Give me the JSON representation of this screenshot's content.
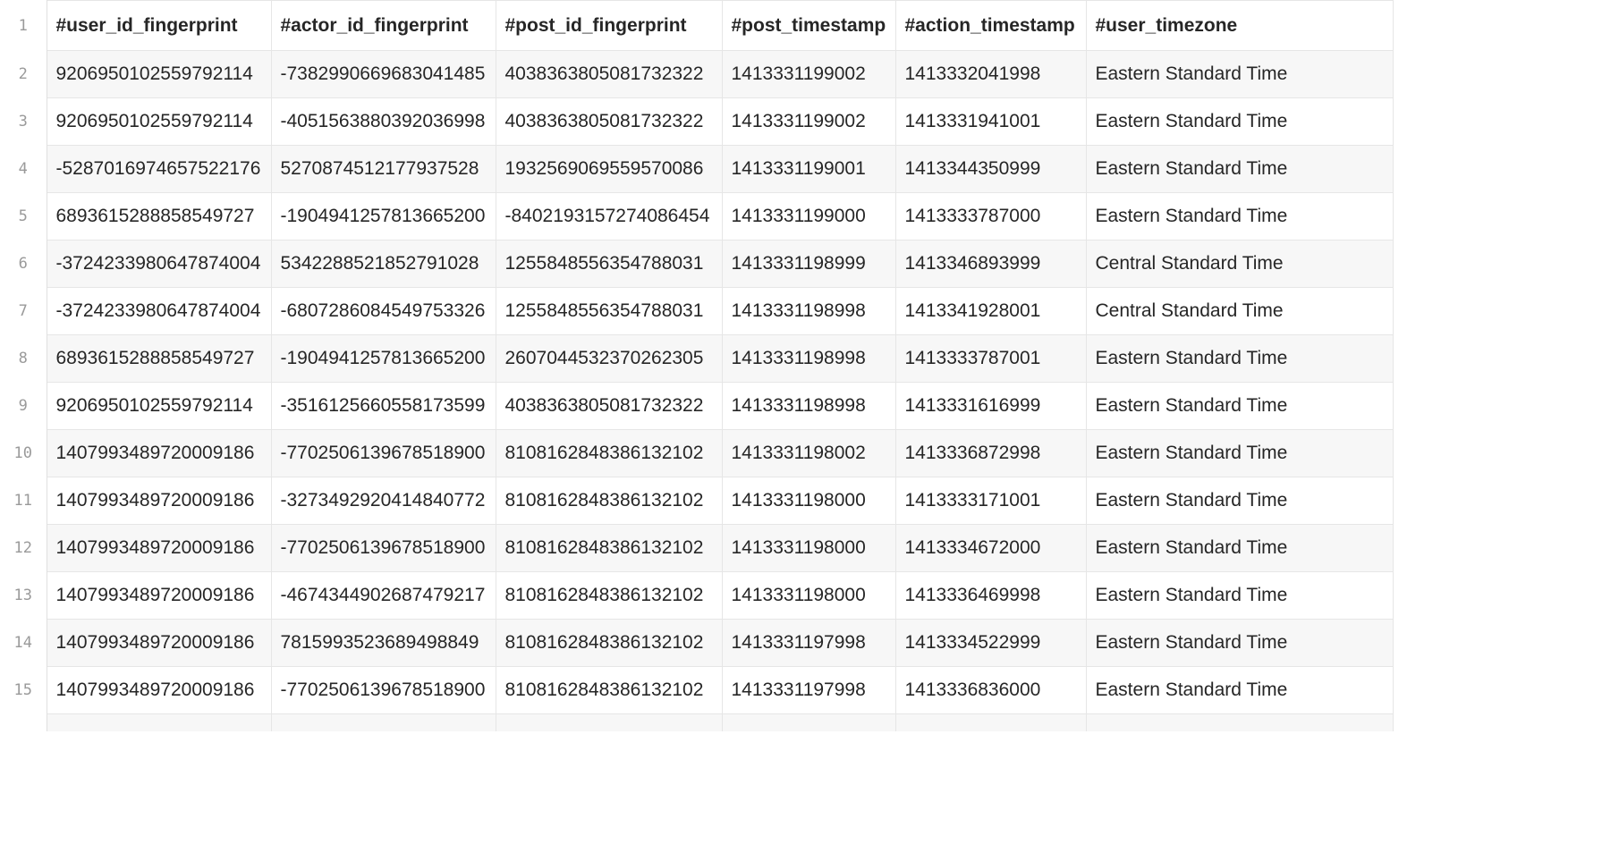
{
  "table": {
    "header_line": "1",
    "columns": [
      "#user_id_fingerprint",
      "#actor_id_fingerprint",
      "#post_id_fingerprint",
      "#post_timestamp",
      "#action_timestamp",
      "#user_timezone"
    ],
    "rows": [
      {
        "line": "2",
        "cells": [
          "9206950102559792114",
          "-7382990669683041485",
          "4038363805081732322",
          "1413331199002",
          "1413332041998",
          "Eastern Standard Time"
        ]
      },
      {
        "line": "3",
        "cells": [
          "9206950102559792114",
          "-4051563880392036998",
          "4038363805081732322",
          "1413331199002",
          "1413331941001",
          "Eastern Standard Time"
        ]
      },
      {
        "line": "4",
        "cells": [
          "-5287016974657522176",
          "5270874512177937528",
          "1932569069559570086",
          "1413331199001",
          "1413344350999",
          "Eastern Standard Time"
        ]
      },
      {
        "line": "5",
        "cells": [
          "6893615288858549727",
          "-1904941257813665200",
          "-8402193157274086454",
          "1413331199000",
          "1413333787000",
          "Eastern Standard Time"
        ]
      },
      {
        "line": "6",
        "cells": [
          "-3724233980647874004",
          "5342288521852791028",
          "1255848556354788031",
          "1413331198999",
          "1413346893999",
          "Central Standard Time"
        ]
      },
      {
        "line": "7",
        "cells": [
          "-3724233980647874004",
          "-6807286084549753326",
          "1255848556354788031",
          "1413331198998",
          "1413341928001",
          "Central Standard Time"
        ]
      },
      {
        "line": "8",
        "cells": [
          "6893615288858549727",
          "-1904941257813665200",
          "2607044532370262305",
          "1413331198998",
          "1413333787001",
          "Eastern Standard Time"
        ]
      },
      {
        "line": "9",
        "cells": [
          "9206950102559792114",
          "-3516125660558173599",
          "4038363805081732322",
          "1413331198998",
          "1413331616999",
          "Eastern Standard Time"
        ]
      },
      {
        "line": "10",
        "cells": [
          "1407993489720009186",
          "-7702506139678518900",
          "8108162848386132102",
          "1413331198002",
          "1413336872998",
          "Eastern Standard Time"
        ]
      },
      {
        "line": "11",
        "cells": [
          "1407993489720009186",
          "-3273492920414840772",
          "8108162848386132102",
          "1413331198000",
          "1413333171001",
          "Eastern Standard Time"
        ]
      },
      {
        "line": "12",
        "cells": [
          "1407993489720009186",
          "-7702506139678518900",
          "8108162848386132102",
          "1413331198000",
          "1413334672000",
          "Eastern Standard Time"
        ]
      },
      {
        "line": "13",
        "cells": [
          "1407993489720009186",
          "-4674344902687479217",
          "8108162848386132102",
          "1413331198000",
          "1413336469998",
          "Eastern Standard Time"
        ]
      },
      {
        "line": "14",
        "cells": [
          "1407993489720009186",
          "7815993523689498849",
          "8108162848386132102",
          "1413331197998",
          "1413334522999",
          "Eastern Standard Time"
        ]
      },
      {
        "line": "15",
        "cells": [
          "1407993489720009186",
          "-7702506139678518900",
          "8108162848386132102",
          "1413331197998",
          "1413336836000",
          "Eastern Standard Time"
        ]
      }
    ]
  }
}
